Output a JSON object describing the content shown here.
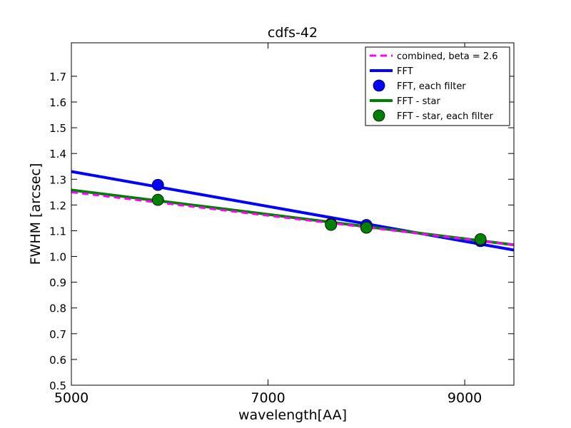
{
  "chart_data": {
    "type": "line",
    "title": "cdfs-42",
    "xlabel": "wavelength[AA]",
    "ylabel": "FWHM [arcsec]",
    "xlim": [
      5000,
      9500
    ],
    "ylim": [
      0.5,
      1.83
    ],
    "xticks": [
      5000,
      7000,
      9000
    ],
    "xtick_labels": [
      "5000",
      "7000",
      "9000"
    ],
    "yticks": [
      0.5,
      0.6,
      0.7,
      0.8,
      0.9,
      1.0,
      1.1,
      1.2,
      1.3,
      1.4,
      1.5,
      1.6,
      1.7
    ],
    "ytick_labels": [
      "0.5",
      "0.6",
      "0.7",
      "0.8",
      "0.9",
      "1.0",
      "1.1",
      "1.2",
      "1.3",
      "1.4",
      "1.5",
      "1.6",
      "1.7"
    ],
    "grid": false,
    "legend_position": "top-right",
    "series": [
      {
        "name": "combined, beta = 2.6",
        "kind": "line",
        "style": "dashed",
        "color": "#ff00ff",
        "x": [
          5000,
          9500
        ],
        "y": [
          1.25,
          1.045
        ]
      },
      {
        "name": "FFT",
        "kind": "line",
        "style": "solid",
        "color": "#0000ff",
        "x": [
          5000,
          9500
        ],
        "y": [
          1.33,
          1.025
        ]
      },
      {
        "name": "FFT, each filter",
        "kind": "scatter",
        "color": "#0000ff",
        "x": [
          5880,
          7640,
          8000,
          9160
        ],
        "y": [
          1.278,
          1.127,
          1.122,
          1.06
        ]
      },
      {
        "name": "FFT - star",
        "kind": "line",
        "style": "solid",
        "color": "#008000",
        "x": [
          5000,
          9500
        ],
        "y": [
          1.258,
          1.045
        ]
      },
      {
        "name": "FFT - star, each filter",
        "kind": "scatter",
        "color": "#008000",
        "x": [
          5880,
          7640,
          8000,
          9160
        ],
        "y": [
          1.22,
          1.123,
          1.112,
          1.067
        ]
      }
    ]
  }
}
